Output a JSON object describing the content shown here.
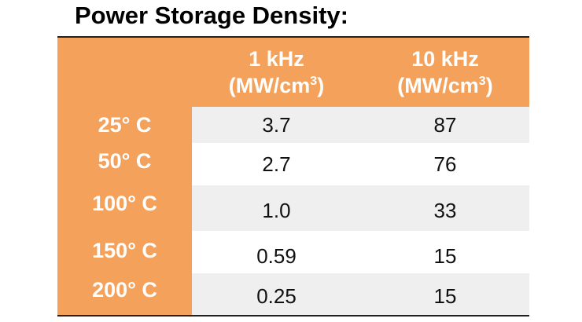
{
  "title": "Power Storage Density:",
  "table": {
    "columns": [
      {
        "line1": "1 kHz",
        "line2_base": "(MW/cm",
        "line2_sup": "3",
        "line2_end": ")"
      },
      {
        "line1": "10 kHz",
        "line2_base": "(MW/cm",
        "line2_sup": "3",
        "line2_end": ")"
      }
    ],
    "rows": [
      {
        "temp": "25° C",
        "v1": "3.7",
        "v2": "87"
      },
      {
        "temp": "50° C",
        "v1": "2.7",
        "v2": "76"
      },
      {
        "temp": "100° C",
        "v1": "1.0",
        "v2": "33"
      },
      {
        "temp": "150° C",
        "v1": "0.59",
        "v2": "15"
      },
      {
        "temp": "200° C",
        "v1": "0.25",
        "v2": "15"
      }
    ]
  },
  "colors": {
    "header_orange": "#f4a25b",
    "row_grey": "#efefef",
    "row_white": "#ffffff"
  }
}
